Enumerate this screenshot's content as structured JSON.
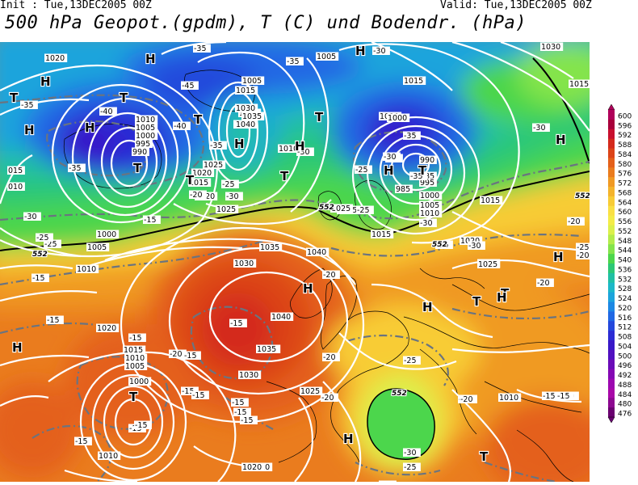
{
  "header": {
    "init_label": "Init : Tue,13DEC2005 00Z",
    "valid_label": "Valid: Tue,13DEC2005 00Z",
    "title": "500 hPa Geopot.(gpdm), T (C) und Bodendr. (hPa)"
  },
  "colorbar": {
    "levels": [
      600,
      596,
      592,
      588,
      584,
      580,
      576,
      572,
      568,
      564,
      560,
      556,
      552,
      548,
      544,
      540,
      536,
      532,
      528,
      524,
      520,
      516,
      512,
      508,
      504,
      500,
      496,
      492,
      488,
      484,
      480,
      476
    ],
    "colors": [
      "#b0005a",
      "#a8003a",
      "#c8102e",
      "#d42a1c",
      "#dc4418",
      "#e4601a",
      "#ea7c1e",
      "#f09a24",
      "#f4b42c",
      "#f8cc36",
      "#fae044",
      "#f4ec48",
      "#dcf04c",
      "#b4ec4c",
      "#84e44c",
      "#4cd64c",
      "#2cc876",
      "#20c0a4",
      "#1cb8c8",
      "#1ca4dc",
      "#1c88e4",
      "#2068e4",
      "#2448dc",
      "#2c2cd4",
      "#3818c8",
      "#5010c0",
      "#6a0cb8",
      "#8408b4",
      "#9c08b0",
      "#a808a8",
      "#8c0890",
      "#6a0070"
    ]
  },
  "map": {
    "pressure_centers": [
      {
        "label": "H"
      },
      {
        "label": "H"
      },
      {
        "label": "T"
      },
      {
        "label": "T"
      },
      {
        "label": "H"
      },
      {
        "label": "T"
      },
      {
        "label": "H"
      },
      {
        "label": "T"
      },
      {
        "label": "H"
      },
      {
        "label": "T"
      },
      {
        "label": "H"
      },
      {
        "label": "T"
      },
      {
        "label": "H"
      },
      {
        "label": "T"
      },
      {
        "label": "H"
      },
      {
        "label": "H"
      },
      {
        "label": "T"
      },
      {
        "label": "T"
      },
      {
        "label": "H"
      },
      {
        "label": "H"
      },
      {
        "label": "H"
      },
      {
        "label": "T"
      },
      {
        "label": "H"
      },
      {
        "label": "T"
      },
      {
        "label": "H"
      },
      {
        "label": "T"
      },
      {
        "label": "H"
      }
    ],
    "isobar_labels": [
      {
        "text": "1020"
      },
      {
        "text": "1010"
      },
      {
        "text": "1005"
      },
      {
        "text": "1000"
      },
      {
        "text": "995"
      },
      {
        "text": "990"
      },
      {
        "text": "015"
      },
      {
        "text": "010"
      },
      {
        "text": "1000"
      },
      {
        "text": "1005"
      },
      {
        "text": "1010"
      },
      {
        "text": "1005"
      },
      {
        "text": "1015"
      },
      {
        "text": "1025"
      },
      {
        "text": "1020"
      },
      {
        "text": "1030"
      },
      {
        "text": "1035"
      },
      {
        "text": "1040"
      },
      {
        "text": "1025"
      },
      {
        "text": "1020"
      },
      {
        "text": "1015"
      },
      {
        "text": "1010"
      },
      {
        "text": "1025"
      },
      {
        "text": "1020"
      },
      {
        "text": "1005"
      },
      {
        "text": "1015"
      },
      {
        "text": "1010"
      },
      {
        "text": "1030"
      },
      {
        "text": "1035"
      },
      {
        "text": "1000"
      },
      {
        "text": "990"
      },
      {
        "text": "985"
      },
      {
        "text": "985"
      },
      {
        "text": "995"
      },
      {
        "text": "1000"
      },
      {
        "text": "1005"
      },
      {
        "text": "1010"
      },
      {
        "text": "1015"
      },
      {
        "text": "1020"
      },
      {
        "text": "1025"
      },
      {
        "text": "1035"
      },
      {
        "text": "1040"
      },
      {
        "text": "1040"
      },
      {
        "text": "1035"
      },
      {
        "text": "1030"
      },
      {
        "text": "1025"
      },
      {
        "text": "1020"
      },
      {
        "text": "1015"
      },
      {
        "text": "1010"
      },
      {
        "text": "1005"
      },
      {
        "text": "1000"
      },
      {
        "text": "1020"
      },
      {
        "text": "1025"
      },
      {
        "text": "1025"
      },
      {
        "text": "1025"
      },
      {
        "text": "1015"
      },
      {
        "text": "1010"
      },
      {
        "text": "1010"
      },
      {
        "text": "1020"
      },
      {
        "text": "1040"
      },
      {
        "text": "1030"
      },
      {
        "text": "1015"
      }
    ],
    "temp_labels": [
      {
        "text": "-35"
      },
      {
        "text": "-35"
      },
      {
        "text": "-40"
      },
      {
        "text": "-45"
      },
      {
        "text": "-40"
      },
      {
        "text": "-35"
      },
      {
        "text": "-35"
      },
      {
        "text": "-30"
      },
      {
        "text": "-35"
      },
      {
        "text": "-30"
      },
      {
        "text": "-25"
      },
      {
        "text": "-20"
      },
      {
        "text": "-30"
      },
      {
        "text": "-25"
      },
      {
        "text": "-25"
      },
      {
        "text": "-15"
      },
      {
        "text": "-30"
      },
      {
        "text": "-35"
      },
      {
        "text": "-30"
      },
      {
        "text": "-35"
      },
      {
        "text": "-35"
      },
      {
        "text": "-30"
      },
      {
        "text": "-25"
      },
      {
        "text": "-25"
      },
      {
        "text": "-30"
      },
      {
        "text": "-35"
      },
      {
        "text": "-30"
      },
      {
        "text": "-30"
      },
      {
        "text": "-30"
      },
      {
        "text": "-20"
      },
      {
        "text": "-25"
      },
      {
        "text": "-20"
      },
      {
        "text": "-20"
      },
      {
        "text": "-25"
      },
      {
        "text": "-20"
      },
      {
        "text": "-15"
      },
      {
        "text": "-15"
      },
      {
        "text": "-15"
      },
      {
        "text": "-15"
      },
      {
        "text": "-15"
      },
      {
        "text": "-15"
      },
      {
        "text": "-20"
      },
      {
        "text": "-15"
      },
      {
        "text": "-15"
      },
      {
        "text": "-15"
      },
      {
        "text": "-15"
      },
      {
        "text": "-20"
      },
      {
        "text": "-20"
      },
      {
        "text": "-25"
      },
      {
        "text": "-20"
      },
      {
        "text": "-15"
      },
      {
        "text": "-20"
      },
      {
        "text": "-30"
      },
      {
        "text": "-25"
      },
      {
        "text": "-20"
      },
      {
        "text": "-15"
      },
      {
        "text": "-15"
      },
      {
        "text": "-20"
      },
      {
        "text": "-15"
      },
      {
        "text": "-15"
      }
    ],
    "geopot_labels": [
      {
        "text": "552"
      },
      {
        "text": "552"
      },
      {
        "text": "552"
      },
      {
        "text": "552"
      },
      {
        "text": "552"
      }
    ]
  }
}
